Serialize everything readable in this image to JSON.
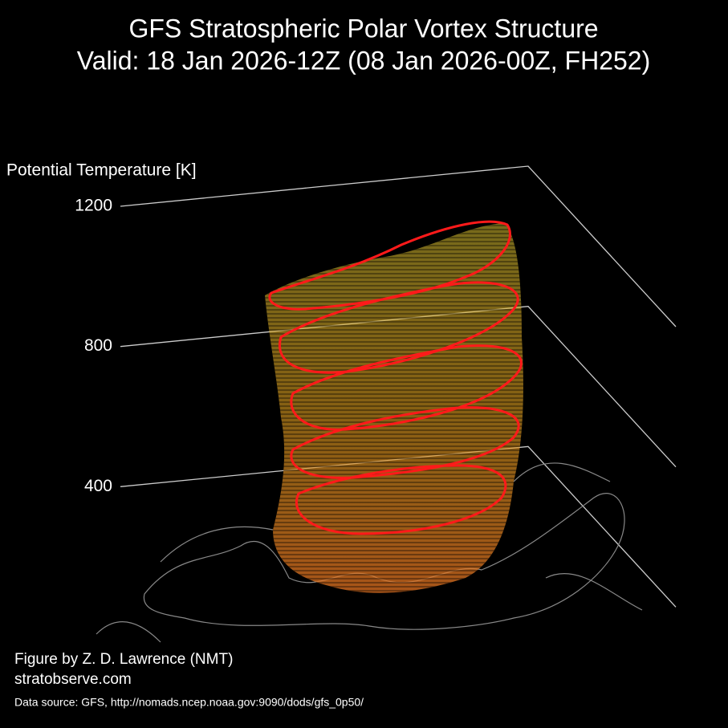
{
  "chart_data": {
    "type": "3d-surface",
    "title": "GFS Stratospheric Polar Vortex Structure",
    "subtitle": "Valid: 18 Jan 2026-12Z  (08 Jan 2026-00Z, FH252)",
    "z_label": "Potential Temperature [K]",
    "zlim": [
      0,
      1200
    ],
    "zticks": [
      400,
      800,
      1200
    ],
    "credit": "Figure by Z. D. Lawrence (NMT)",
    "website": "stratobserve.com",
    "source": "Data source: GFS, http://nomads.ncep.noaa.gov:9090/dods/gfs_0p50/"
  }
}
